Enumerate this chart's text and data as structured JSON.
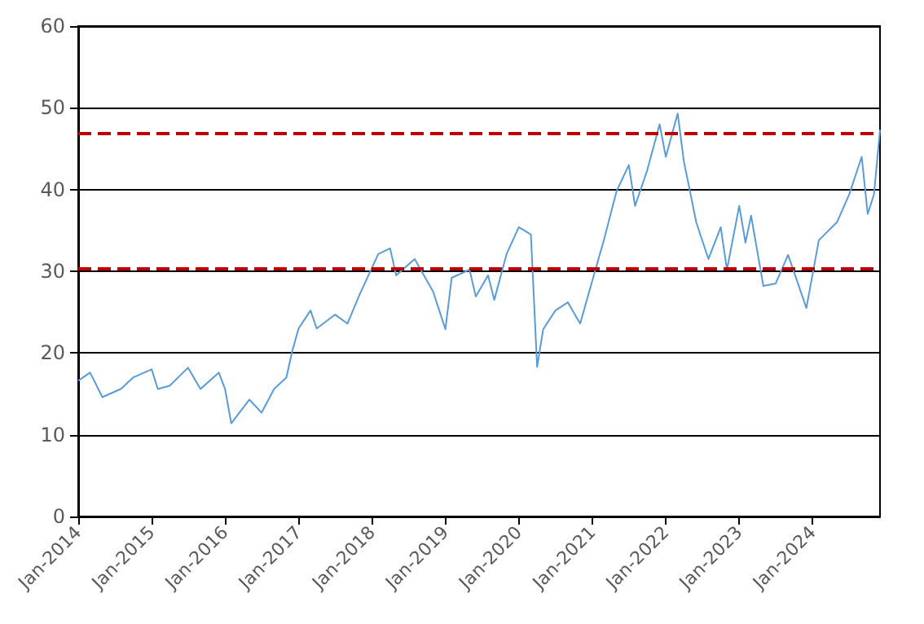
{
  "chart_data": {
    "type": "line",
    "x": [
      "2014-01",
      "2014-03",
      "2014-05",
      "2014-08",
      "2014-10",
      "2015-01",
      "2015-02",
      "2015-04",
      "2015-07",
      "2015-09",
      "2015-12",
      "2016-01",
      "2016-02",
      "2016-05",
      "2016-07",
      "2016-09",
      "2016-11",
      "2016-12",
      "2017-01",
      "2017-03",
      "2017-04",
      "2017-07",
      "2017-09",
      "2017-11",
      "2018-02",
      "2018-04",
      "2018-05",
      "2018-08",
      "2018-11",
      "2019-01",
      "2019-02",
      "2019-05",
      "2019-06",
      "2019-08",
      "2019-09",
      "2019-11",
      "2020-01",
      "2020-03",
      "2020-04",
      "2020-05",
      "2020-07",
      "2020-09",
      "2020-11",
      "2021-01",
      "2021-03",
      "2021-05",
      "2021-07",
      "2021-08",
      "2021-10",
      "2021-12",
      "2022-01",
      "2022-03",
      "2022-04",
      "2022-05",
      "2022-06",
      "2022-08",
      "2022-10",
      "2022-11",
      "2023-01",
      "2023-02",
      "2023-03",
      "2023-05",
      "2023-07",
      "2023-09",
      "2023-12",
      "2024-02",
      "2024-05",
      "2024-07",
      "2024-09",
      "2024-10",
      "2024-11",
      "2024-12"
    ],
    "series": [
      {
        "color": "#5b9bd5",
        "values": [
          16.6,
          17.6,
          14.6,
          15.6,
          17,
          18,
          15.6,
          16,
          18.2,
          15.6,
          17.6,
          15.6,
          11.4,
          14.3,
          12.7,
          15.6,
          17,
          20.3,
          23,
          25.2,
          23,
          24.7,
          23.6,
          27.2,
          32.1,
          32.8,
          29.5,
          31.5,
          27.5,
          22.9,
          29.2,
          30.2,
          26.9,
          29.5,
          26.5,
          32.1,
          35.4,
          34.5,
          18.3,
          22.9,
          25.2,
          26.2,
          23.6,
          28.9,
          34,
          39.8,
          43,
          38,
          42.4,
          48,
          44,
          49.3,
          43.4,
          39.8,
          36,
          31.5,
          35.4,
          30.2,
          38,
          33.5,
          36.8,
          28.2,
          28.5,
          32,
          25.5,
          33.8,
          36,
          39.4,
          44,
          37,
          39.4,
          47.3
        ]
      }
    ],
    "xlim": [
      "2014-01",
      "2024-12"
    ],
    "xticks": [
      {
        "value": "2014-01",
        "label": "Jan-2014"
      },
      {
        "value": "2015-01",
        "label": "Jan-2015"
      },
      {
        "value": "2016-01",
        "label": "Jan-2016"
      },
      {
        "value": "2017-01",
        "label": "Jan-2017"
      },
      {
        "value": "2018-01",
        "label": "Jan-2018"
      },
      {
        "value": "2019-01",
        "label": "Jan-2019"
      },
      {
        "value": "2020-01",
        "label": "Jan-2020"
      },
      {
        "value": "2021-01",
        "label": "Jan-2021"
      },
      {
        "value": "2022-01",
        "label": "Jan-2022"
      },
      {
        "value": "2023-01",
        "label": "Jan-2023"
      },
      {
        "value": "2024-01",
        "label": "Jan-2024"
      }
    ],
    "ylim": [
      0,
      60
    ],
    "yticks": [
      0,
      10,
      20,
      30,
      40,
      50,
      60
    ],
    "grid": "y",
    "marker": "none",
    "line_style": "solid",
    "ref_lines": [
      {
        "axis": "y",
        "value": 46.8,
        "color": "#c00000",
        "line_style": "dashed"
      },
      {
        "axis": "y",
        "value": 30.3,
        "color": "#c00000",
        "line_style": "dashed"
      }
    ]
  }
}
